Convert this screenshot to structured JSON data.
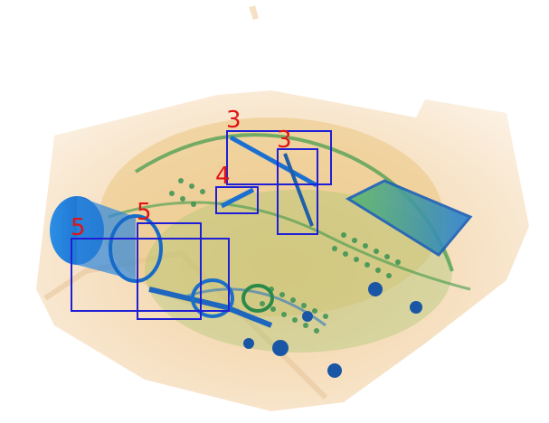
{
  "image": {
    "description_colors": {
      "background": "#ffffff",
      "bag_tint": "#f3d9b8",
      "organic": "#f0b46a",
      "dense_blue": "#1f7fd6",
      "green_material": "#3d9a4a",
      "box_stroke": "#1f1fd6",
      "label_color": "#e01414"
    }
  },
  "detections": [
    {
      "label": "3"
    },
    {
      "label": "3"
    },
    {
      "label": "4"
    },
    {
      "label": "5"
    },
    {
      "label": "5"
    }
  ]
}
